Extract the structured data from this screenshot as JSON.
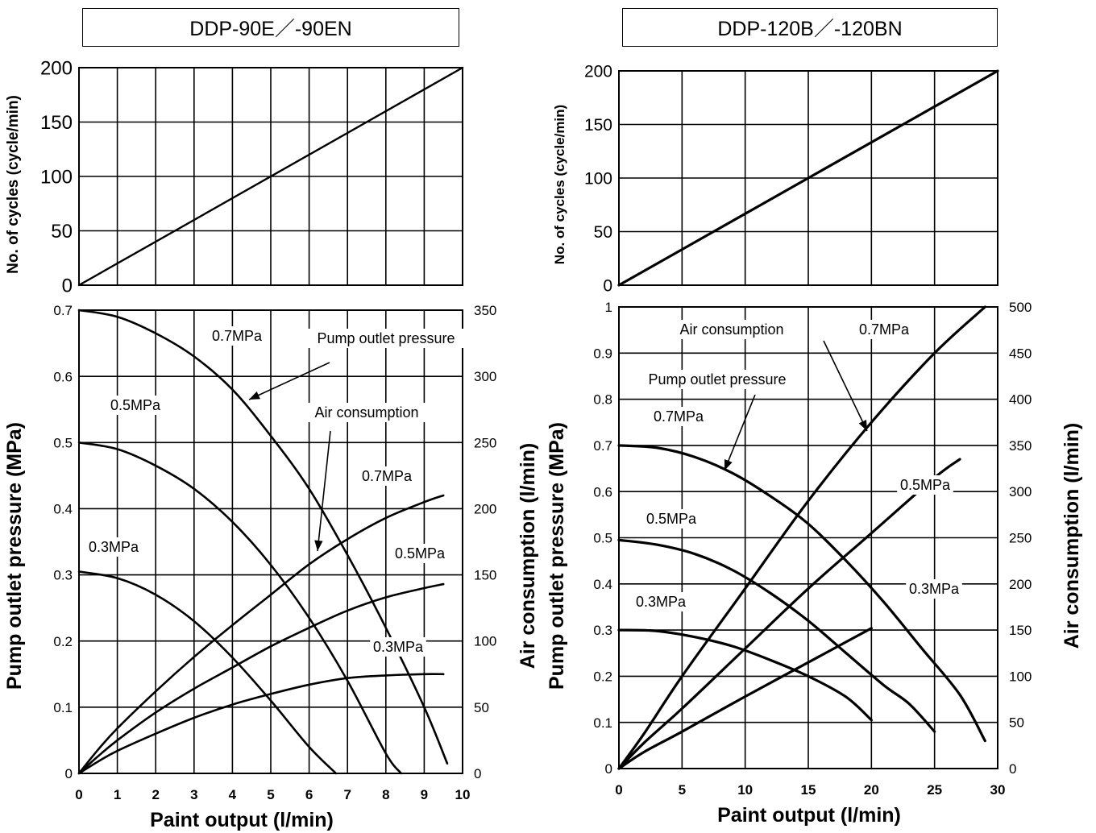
{
  "chart_data": [
    {
      "id": "left-cycles",
      "type": "line",
      "panel_title": "DDP-90E／-90EN",
      "ylabel": "No. of cycles (cycle/min)",
      "xlim": [
        0,
        10
      ],
      "ylim": [
        0,
        200
      ],
      "y_ticks": [
        "0",
        "50",
        "100",
        "150",
        "200"
      ],
      "grid": true,
      "series": [
        {
          "points": [
            [
              0,
              0
            ],
            [
              10,
              200
            ]
          ]
        }
      ]
    },
    {
      "id": "left-performance",
      "type": "line",
      "xlabel": "Paint output (l/min)",
      "ylabel": "Pump outlet pressure (MPa)",
      "y2label": "Air consumption (l/min)",
      "xlim": [
        0,
        10
      ],
      "ylim": [
        0,
        0.7
      ],
      "y2lim": [
        0,
        350
      ],
      "x_ticks": [
        "0",
        "1",
        "2",
        "3",
        "4",
        "5",
        "6",
        "7",
        "8",
        "9",
        "10"
      ],
      "y_ticks": [
        "0",
        "0.1",
        "0.2",
        "0.3",
        "0.4",
        "0.5",
        "0.6",
        "0.7"
      ],
      "y2_ticks": [
        "0",
        "50",
        "100",
        "150",
        "200",
        "250",
        "300",
        "350"
      ],
      "grid": true,
      "series": [
        {
          "axis": "left",
          "points": [
            [
              0,
              0.7
            ],
            [
              1,
              0.69
            ],
            [
              2,
              0.665
            ],
            [
              3,
              0.63
            ],
            [
              4,
              0.58
            ],
            [
              5,
              0.51
            ],
            [
              6,
              0.43
            ],
            [
              7,
              0.33
            ],
            [
              8,
              0.22
            ],
            [
              9,
              0.1
            ],
            [
              9.6,
              0.015
            ]
          ]
        },
        {
          "axis": "left",
          "points": [
            [
              0,
              0.5
            ],
            [
              1,
              0.49
            ],
            [
              2,
              0.465
            ],
            [
              3,
              0.43
            ],
            [
              4,
              0.38
            ],
            [
              5,
              0.315
            ],
            [
              6,
              0.235
            ],
            [
              7,
              0.14
            ],
            [
              8,
              0.03
            ],
            [
              8.4,
              0
            ]
          ]
        },
        {
          "axis": "left",
          "points": [
            [
              0,
              0.305
            ],
            [
              1,
              0.295
            ],
            [
              2,
              0.27
            ],
            [
              3,
              0.23
            ],
            [
              4,
              0.175
            ],
            [
              5,
              0.11
            ],
            [
              6,
              0.04
            ],
            [
              6.7,
              0
            ]
          ]
        },
        {
          "axis": "right",
          "points": [
            [
              0,
              0
            ],
            [
              0.5,
              18
            ],
            [
              1,
              34
            ],
            [
              2,
              62
            ],
            [
              3,
              88
            ],
            [
              4,
              112
            ],
            [
              5,
              135
            ],
            [
              6,
              158
            ],
            [
              7,
              177
            ],
            [
              8,
              193
            ],
            [
              9,
              205
            ],
            [
              9.5,
              210
            ]
          ]
        },
        {
          "axis": "right",
          "points": [
            [
              0,
              0
            ],
            [
              0.5,
              13
            ],
            [
              1,
              25
            ],
            [
              2,
              46
            ],
            [
              3,
              64
            ],
            [
              4,
              80
            ],
            [
              5,
              96
            ],
            [
              6,
              110
            ],
            [
              7,
              123
            ],
            [
              8,
              133
            ],
            [
              9,
              140
            ],
            [
              9.5,
              143
            ]
          ]
        },
        {
          "axis": "right",
          "points": [
            [
              0,
              0
            ],
            [
              0.5,
              9
            ],
            [
              1,
              17
            ],
            [
              2,
              30
            ],
            [
              3,
              42
            ],
            [
              4,
              52
            ],
            [
              5,
              60
            ],
            [
              6,
              67
            ],
            [
              7,
              72
            ],
            [
              8,
              74
            ],
            [
              9,
              75
            ],
            [
              9.5,
              75
            ]
          ]
        }
      ],
      "annotations": [
        {
          "text": "0.7MPa"
        },
        {
          "text": "0.5MPa"
        },
        {
          "text": "0.3MPa"
        },
        {
          "text": "Pump outlet pressure"
        },
        {
          "text": "Air consumption"
        },
        {
          "text": "0.7MPa"
        },
        {
          "text": "0.5MPa"
        },
        {
          "text": "0.3MPa"
        }
      ]
    },
    {
      "id": "right-cycles",
      "type": "line",
      "panel_title": "DDP-120B／-120BN",
      "ylabel": "No. of cycles (cycle/min)",
      "xlim": [
        0,
        30
      ],
      "ylim": [
        0,
        200
      ],
      "y_ticks": [
        "0",
        "50",
        "100",
        "150",
        "200"
      ],
      "grid": true,
      "series": [
        {
          "points": [
            [
              0,
              0
            ],
            [
              30,
              200
            ]
          ]
        }
      ]
    },
    {
      "id": "right-performance",
      "type": "line",
      "xlabel": "Paint output (l/min)",
      "ylabel": "Pump outlet pressure (MPa)",
      "y2label": "Air consumption (l/min)",
      "xlim": [
        0,
        30
      ],
      "ylim": [
        0,
        1
      ],
      "y2lim": [
        0,
        500
      ],
      "x_ticks": [
        "0",
        "5",
        "10",
        "15",
        "20",
        "25",
        "30"
      ],
      "y_ticks": [
        "0",
        "0.1",
        "0.2",
        "0.3",
        "0.4",
        "0.5",
        "0.6",
        "0.7",
        "0.8",
        "0.9",
        "1"
      ],
      "y2_ticks": [
        "0",
        "50",
        "100",
        "150",
        "200",
        "250",
        "300",
        "350",
        "400",
        "450",
        "500"
      ],
      "grid": true,
      "series": [
        {
          "axis": "left",
          "points": [
            [
              0,
              0.7
            ],
            [
              3,
              0.695
            ],
            [
              6,
              0.675
            ],
            [
              9,
              0.64
            ],
            [
              12,
              0.59
            ],
            [
              15,
              0.53
            ],
            [
              18,
              0.45
            ],
            [
              21,
              0.36
            ],
            [
              24,
              0.26
            ],
            [
              27,
              0.16
            ],
            [
              29,
              0.06
            ]
          ]
        },
        {
          "axis": "left",
          "points": [
            [
              0,
              0.495
            ],
            [
              3,
              0.485
            ],
            [
              6,
              0.465
            ],
            [
              9,
              0.43
            ],
            [
              12,
              0.38
            ],
            [
              15,
              0.32
            ],
            [
              18,
              0.25
            ],
            [
              21,
              0.18
            ],
            [
              23,
              0.14
            ],
            [
              25,
              0.08
            ]
          ]
        },
        {
          "axis": "left",
          "points": [
            [
              0,
              0.3
            ],
            [
              3,
              0.298
            ],
            [
              6,
              0.285
            ],
            [
              9,
              0.265
            ],
            [
              12,
              0.235
            ],
            [
              15,
              0.2
            ],
            [
              18,
              0.155
            ],
            [
              20,
              0.105
            ]
          ]
        },
        {
          "axis": "right",
          "points": [
            [
              0,
              0
            ],
            [
              2,
              38
            ],
            [
              5,
              100
            ],
            [
              10,
              195
            ],
            [
              15,
              290
            ],
            [
              20,
              375
            ],
            [
              25,
              450
            ],
            [
              29,
              500
            ]
          ]
        },
        {
          "axis": "right",
          "points": [
            [
              0,
              0
            ],
            [
              2,
              28
            ],
            [
              5,
              65
            ],
            [
              10,
              130
            ],
            [
              15,
              195
            ],
            [
              20,
              255
            ],
            [
              25,
              315
            ],
            [
              27,
              335
            ]
          ]
        },
        {
          "axis": "right",
          "points": [
            [
              0,
              0
            ],
            [
              2,
              18
            ],
            [
              5,
              40
            ],
            [
              10,
              78
            ],
            [
              15,
              115
            ],
            [
              20,
              152
            ]
          ]
        }
      ],
      "annotations": [
        {
          "text": "Air consumption"
        },
        {
          "text": "0.7MPa"
        },
        {
          "text": "Pump outlet pressure"
        },
        {
          "text": "0.7MPa"
        },
        {
          "text": "0.5MPa"
        },
        {
          "text": "0.5MPa"
        },
        {
          "text": "0.3MPa"
        },
        {
          "text": "0.3MPa"
        }
      ]
    }
  ]
}
